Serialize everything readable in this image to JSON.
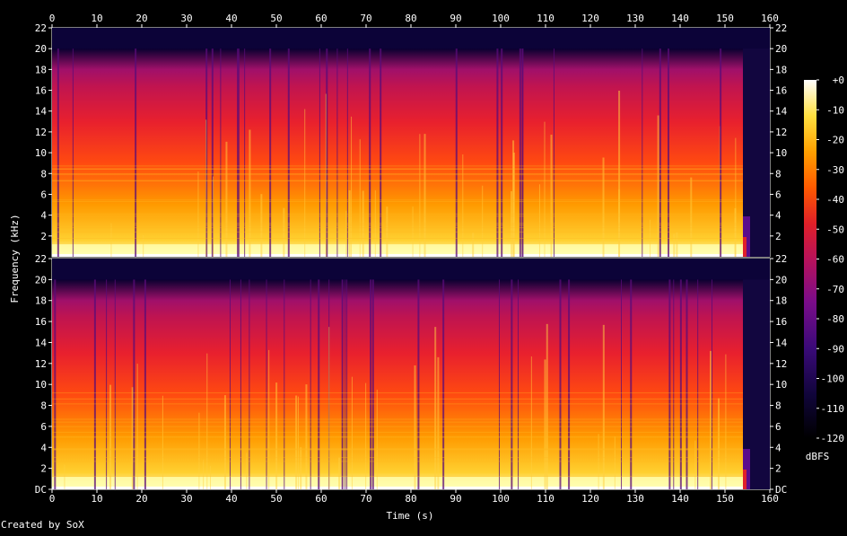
{
  "credit": "Created by SoX",
  "colors": {
    "background": "#000000",
    "text": "#ffffff",
    "colormap": [
      "#000000",
      "#1a0a55",
      "#5a0c8c",
      "#a5105e",
      "#e0202a",
      "#ff5a00",
      "#ffa800",
      "#ffe040",
      "#ffffc8",
      "#ffffff"
    ]
  },
  "chart_data": {
    "type": "heatmap",
    "title": "",
    "xlabel": "Time (s)",
    "ylabel": "Frequency (kHz)",
    "xlim": [
      0,
      160
    ],
    "x_ticks": [
      "0",
      "10",
      "20",
      "30",
      "40",
      "50",
      "60",
      "70",
      "80",
      "90",
      "100",
      "110",
      "120",
      "130",
      "140",
      "150",
      "160"
    ],
    "channels": [
      {
        "name": "channel-1",
        "ylim": [
          0,
          22
        ],
        "y_ticks": [
          "22",
          "20",
          "18",
          "16",
          "14",
          "12",
          "10",
          "8",
          "6",
          "4",
          "2"
        ]
      },
      {
        "name": "channel-2",
        "ylim": [
          0,
          22
        ],
        "y_ticks": [
          "22",
          "20",
          "18",
          "16",
          "14",
          "12",
          "10",
          "8",
          "6",
          "4",
          "2",
          "DC"
        ]
      }
    ],
    "spectral_cutoff_khz": 20,
    "audio_end_s": 154,
    "colorbar": {
      "label": "dBFS",
      "range": [
        -120,
        0
      ],
      "ticks": [
        "+0",
        "-10",
        "-20",
        "-30",
        "-40",
        "-50",
        "-60",
        "-70",
        "-80",
        "-90",
        "-100",
        "-110",
        "-120"
      ]
    }
  }
}
